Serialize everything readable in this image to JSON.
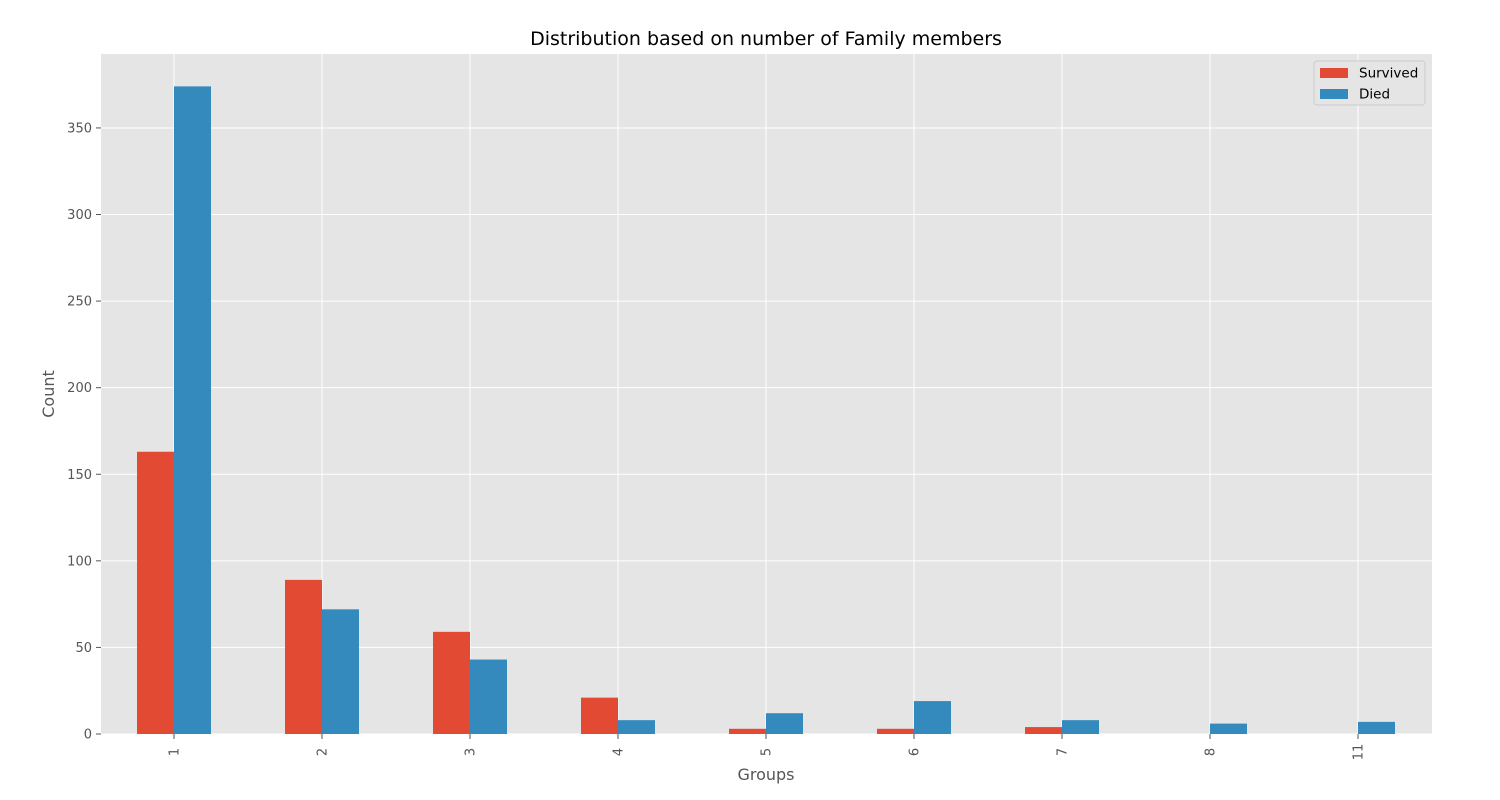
{
  "chart_data": {
    "type": "bar",
    "title": "Distribution based on number of Family members",
    "xlabel": "Groups",
    "ylabel": "Count",
    "categories": [
      "1",
      "2",
      "3",
      "4",
      "5",
      "6",
      "7",
      "8",
      "11"
    ],
    "series": [
      {
        "name": "Survived",
        "color": "#E24A33",
        "values": [
          163,
          89,
          59,
          21,
          3,
          3,
          4,
          0,
          0
        ]
      },
      {
        "name": "Died",
        "color": "#348ABD",
        "values": [
          374,
          72,
          43,
          8,
          12,
          19,
          8,
          6,
          7
        ]
      }
    ],
    "ylim": [
      0,
      392.7
    ],
    "yticks": [
      0,
      50,
      100,
      150,
      200,
      250,
      300,
      350
    ],
    "grid": true,
    "legend_position": "top-right",
    "background_color": "#E5E5E5",
    "grid_color": "#FFFFFF"
  }
}
